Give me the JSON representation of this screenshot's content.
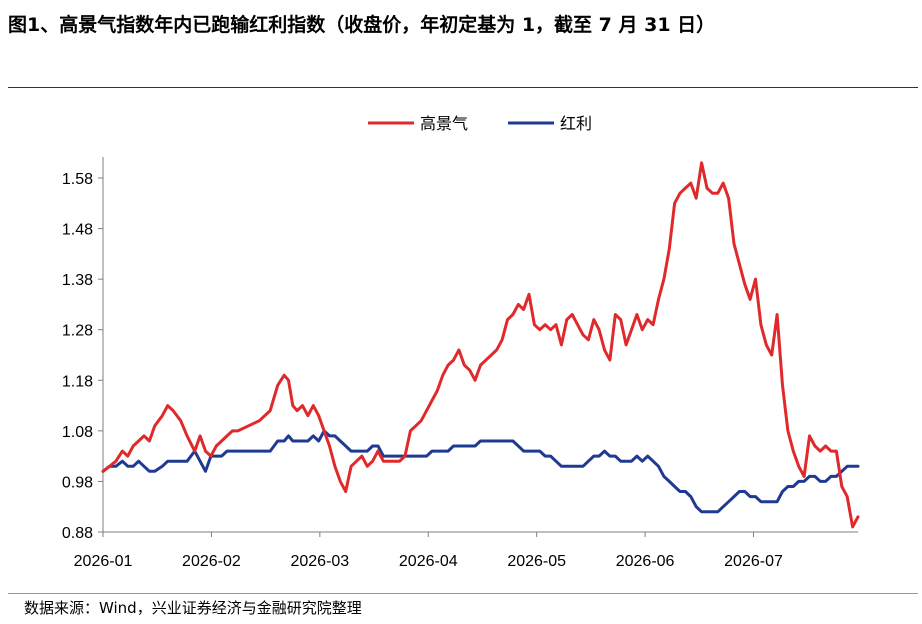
{
  "title": "图1、高景气指数年内已跑输红利指数（收盘价，年初定基为 1，截至 7 月 31 日）",
  "source": "数据来源：Wind，兴业证券经济与金融研究院整理",
  "chart_data": {
    "type": "line",
    "title": "图1、高景气指数年内已跑输红利指数（收盘价，年初定基为 1，截至 7 月 31 日）",
    "xlabel": "",
    "ylabel": "",
    "x_ticks": [
      "2026-01",
      "2026-02",
      "2026-03",
      "2026-04",
      "2026-05",
      "2026-06",
      "2026-07"
    ],
    "x_tick_values": [
      0,
      1,
      2,
      3,
      4,
      5,
      6
    ],
    "xlim": [
      0,
      6.72
    ],
    "ylim": [
      0.88,
      1.58
    ],
    "y_ticks": [
      "0.88",
      "0.98",
      "1.08",
      "1.18",
      "1.28",
      "1.38",
      "1.48",
      "1.58"
    ],
    "y_tick_values": [
      0.88,
      0.98,
      1.08,
      1.18,
      1.28,
      1.38,
      1.48,
      1.58
    ],
    "grid": false,
    "legend": "top-center",
    "series": [
      {
        "name": "高景气",
        "color": "#E0292B",
        "points": [
          [
            0,
            1
          ],
          [
            0.06,
            1.01
          ],
          [
            0.12,
            1.02
          ],
          [
            0.18,
            1.04
          ],
          [
            0.23,
            1.03
          ],
          [
            0.28,
            1.05
          ],
          [
            0.33,
            1.06
          ],
          [
            0.38,
            1.07
          ],
          [
            0.43,
            1.06
          ],
          [
            0.48,
            1.09
          ],
          [
            0.55,
            1.11
          ],
          [
            0.6,
            1.13
          ],
          [
            0.65,
            1.12
          ],
          [
            0.72,
            1.1
          ],
          [
            0.78,
            1.07
          ],
          [
            0.85,
            1.04
          ],
          [
            0.9,
            1.07
          ],
          [
            0.95,
            1.04
          ],
          [
            1.0,
            1.03
          ],
          [
            1.05,
            1.05
          ],
          [
            1.1,
            1.06
          ],
          [
            1.15,
            1.07
          ],
          [
            1.2,
            1.08
          ],
          [
            1.25,
            1.08
          ],
          [
            1.35,
            1.09
          ],
          [
            1.45,
            1.1
          ],
          [
            1.55,
            1.12
          ],
          [
            1.62,
            1.17
          ],
          [
            1.68,
            1.19
          ],
          [
            1.72,
            1.18
          ],
          [
            1.76,
            1.13
          ],
          [
            1.8,
            1.12
          ],
          [
            1.85,
            1.13
          ],
          [
            1.9,
            1.11
          ],
          [
            1.95,
            1.13
          ],
          [
            2.0,
            1.11
          ],
          [
            2.05,
            1.08
          ],
          [
            2.1,
            1.05
          ],
          [
            2.15,
            1.01
          ],
          [
            2.2,
            0.98
          ],
          [
            2.25,
            0.96
          ],
          [
            2.3,
            1.01
          ],
          [
            2.35,
            1.02
          ],
          [
            2.4,
            1.03
          ],
          [
            2.45,
            1.01
          ],
          [
            2.5,
            1.02
          ],
          [
            2.55,
            1.04
          ],
          [
            2.6,
            1.02
          ],
          [
            2.65,
            1.02
          ],
          [
            2.7,
            1.02
          ],
          [
            2.75,
            1.02
          ],
          [
            2.8,
            1.03
          ],
          [
            2.85,
            1.08
          ],
          [
            2.9,
            1.09
          ],
          [
            2.95,
            1.1
          ],
          [
            3.0,
            1.12
          ],
          [
            3.05,
            1.14
          ],
          [
            3.1,
            1.16
          ],
          [
            3.15,
            1.19
          ],
          [
            3.2,
            1.21
          ],
          [
            3.25,
            1.22
          ],
          [
            3.3,
            1.24
          ],
          [
            3.35,
            1.21
          ],
          [
            3.4,
            1.2
          ],
          [
            3.45,
            1.18
          ],
          [
            3.5,
            1.21
          ],
          [
            3.55,
            1.22
          ],
          [
            3.6,
            1.23
          ],
          [
            3.65,
            1.24
          ],
          [
            3.7,
            1.26
          ],
          [
            3.75,
            1.3
          ],
          [
            3.8,
            1.31
          ],
          [
            3.85,
            1.33
          ],
          [
            3.9,
            1.32
          ],
          [
            3.95,
            1.35
          ],
          [
            4.0,
            1.29
          ],
          [
            4.05,
            1.28
          ],
          [
            4.1,
            1.29
          ],
          [
            4.15,
            1.28
          ],
          [
            4.2,
            1.29
          ],
          [
            4.25,
            1.25
          ],
          [
            4.3,
            1.3
          ],
          [
            4.35,
            1.31
          ],
          [
            4.4,
            1.29
          ],
          [
            4.45,
            1.27
          ],
          [
            4.5,
            1.26
          ],
          [
            4.55,
            1.3
          ],
          [
            4.6,
            1.28
          ],
          [
            4.65,
            1.24
          ],
          [
            4.7,
            1.22
          ],
          [
            4.75,
            1.31
          ],
          [
            4.8,
            1.3
          ],
          [
            4.85,
            1.25
          ],
          [
            4.9,
            1.28
          ],
          [
            4.95,
            1.31
          ],
          [
            5.0,
            1.28
          ],
          [
            5.05,
            1.3
          ],
          [
            5.1,
            1.29
          ],
          [
            5.15,
            1.34
          ],
          [
            5.2,
            1.38
          ],
          [
            5.25,
            1.44
          ],
          [
            5.3,
            1.53
          ],
          [
            5.35,
            1.55
          ],
          [
            5.4,
            1.56
          ],
          [
            5.45,
            1.57
          ],
          [
            5.5,
            1.54
          ],
          [
            5.55,
            1.61
          ],
          [
            5.6,
            1.56
          ],
          [
            5.65,
            1.55
          ],
          [
            5.7,
            1.55
          ],
          [
            5.75,
            1.57
          ],
          [
            5.8,
            1.54
          ],
          [
            5.85,
            1.45
          ],
          [
            5.9,
            1.41
          ],
          [
            5.95,
            1.37
          ],
          [
            6.0,
            1.34
          ],
          [
            6.05,
            1.38
          ],
          [
            6.1,
            1.29
          ],
          [
            6.15,
            1.25
          ],
          [
            6.2,
            1.23
          ],
          [
            6.25,
            1.31
          ],
          [
            6.3,
            1.17
          ],
          [
            6.35,
            1.08
          ],
          [
            6.4,
            1.04
          ],
          [
            6.45,
            1.01
          ],
          [
            6.5,
            0.99
          ],
          [
            6.55,
            1.07
          ],
          [
            6.6,
            1.05
          ],
          [
            6.65,
            1.04
          ],
          [
            6.7,
            1.05
          ],
          [
            6.75,
            1.04
          ],
          [
            6.8,
            1.04
          ],
          [
            6.85,
            0.97
          ],
          [
            6.9,
            0.95
          ],
          [
            6.95,
            0.89
          ],
          [
            7.0,
            0.91
          ]
        ]
      },
      {
        "name": "红利",
        "color": "#1F3A93",
        "points": [
          [
            0,
            1
          ],
          [
            0.06,
            1.01
          ],
          [
            0.12,
            1.01
          ],
          [
            0.18,
            1.02
          ],
          [
            0.23,
            1.01
          ],
          [
            0.28,
            1.01
          ],
          [
            0.33,
            1.02
          ],
          [
            0.38,
            1.01
          ],
          [
            0.43,
            1.0
          ],
          [
            0.48,
            1.0
          ],
          [
            0.55,
            1.01
          ],
          [
            0.6,
            1.02
          ],
          [
            0.65,
            1.02
          ],
          [
            0.72,
            1.02
          ],
          [
            0.78,
            1.02
          ],
          [
            0.85,
            1.04
          ],
          [
            0.9,
            1.02
          ],
          [
            0.95,
            1.0
          ],
          [
            1.0,
            1.03
          ],
          [
            1.05,
            1.03
          ],
          [
            1.1,
            1.03
          ],
          [
            1.15,
            1.04
          ],
          [
            1.2,
            1.04
          ],
          [
            1.25,
            1.04
          ],
          [
            1.35,
            1.04
          ],
          [
            1.45,
            1.04
          ],
          [
            1.55,
            1.04
          ],
          [
            1.62,
            1.06
          ],
          [
            1.68,
            1.06
          ],
          [
            1.72,
            1.07
          ],
          [
            1.76,
            1.06
          ],
          [
            1.8,
            1.06
          ],
          [
            1.85,
            1.06
          ],
          [
            1.9,
            1.06
          ],
          [
            1.95,
            1.07
          ],
          [
            2.0,
            1.06
          ],
          [
            2.05,
            1.08
          ],
          [
            2.1,
            1.07
          ],
          [
            2.15,
            1.07
          ],
          [
            2.2,
            1.06
          ],
          [
            2.25,
            1.05
          ],
          [
            2.3,
            1.04
          ],
          [
            2.35,
            1.04
          ],
          [
            2.4,
            1.04
          ],
          [
            2.45,
            1.04
          ],
          [
            2.5,
            1.05
          ],
          [
            2.55,
            1.05
          ],
          [
            2.6,
            1.03
          ],
          [
            2.65,
            1.03
          ],
          [
            2.7,
            1.03
          ],
          [
            2.75,
            1.03
          ],
          [
            2.8,
            1.03
          ],
          [
            2.85,
            1.03
          ],
          [
            2.9,
            1.03
          ],
          [
            2.95,
            1.03
          ],
          [
            3.0,
            1.03
          ],
          [
            3.05,
            1.04
          ],
          [
            3.1,
            1.04
          ],
          [
            3.15,
            1.04
          ],
          [
            3.2,
            1.04
          ],
          [
            3.25,
            1.05
          ],
          [
            3.3,
            1.05
          ],
          [
            3.35,
            1.05
          ],
          [
            3.4,
            1.05
          ],
          [
            3.45,
            1.05
          ],
          [
            3.5,
            1.06
          ],
          [
            3.55,
            1.06
          ],
          [
            3.6,
            1.06
          ],
          [
            3.65,
            1.06
          ],
          [
            3.7,
            1.06
          ],
          [
            3.75,
            1.06
          ],
          [
            3.8,
            1.06
          ],
          [
            3.85,
            1.05
          ],
          [
            3.9,
            1.04
          ],
          [
            3.95,
            1.04
          ],
          [
            4.0,
            1.04
          ],
          [
            4.05,
            1.04
          ],
          [
            4.1,
            1.03
          ],
          [
            4.15,
            1.03
          ],
          [
            4.2,
            1.02
          ],
          [
            4.25,
            1.01
          ],
          [
            4.3,
            1.01
          ],
          [
            4.35,
            1.01
          ],
          [
            4.4,
            1.01
          ],
          [
            4.45,
            1.01
          ],
          [
            4.5,
            1.02
          ],
          [
            4.55,
            1.03
          ],
          [
            4.6,
            1.03
          ],
          [
            4.65,
            1.04
          ],
          [
            4.7,
            1.03
          ],
          [
            4.75,
            1.03
          ],
          [
            4.8,
            1.02
          ],
          [
            4.85,
            1.02
          ],
          [
            4.9,
            1.02
          ],
          [
            4.95,
            1.03
          ],
          [
            5.0,
            1.02
          ],
          [
            5.05,
            1.03
          ],
          [
            5.1,
            1.02
          ],
          [
            5.15,
            1.01
          ],
          [
            5.2,
            0.99
          ],
          [
            5.25,
            0.98
          ],
          [
            5.3,
            0.97
          ],
          [
            5.35,
            0.96
          ],
          [
            5.4,
            0.96
          ],
          [
            5.45,
            0.95
          ],
          [
            5.5,
            0.93
          ],
          [
            5.55,
            0.92
          ],
          [
            5.6,
            0.92
          ],
          [
            5.65,
            0.92
          ],
          [
            5.7,
            0.92
          ],
          [
            5.75,
            0.93
          ],
          [
            5.8,
            0.94
          ],
          [
            5.85,
            0.95
          ],
          [
            5.9,
            0.96
          ],
          [
            5.95,
            0.96
          ],
          [
            6.0,
            0.95
          ],
          [
            6.05,
            0.95
          ],
          [
            6.1,
            0.94
          ],
          [
            6.15,
            0.94
          ],
          [
            6.2,
            0.94
          ],
          [
            6.25,
            0.94
          ],
          [
            6.3,
            0.96
          ],
          [
            6.35,
            0.97
          ],
          [
            6.4,
            0.97
          ],
          [
            6.45,
            0.98
          ],
          [
            6.5,
            0.98
          ],
          [
            6.55,
            0.99
          ],
          [
            6.6,
            0.99
          ],
          [
            6.65,
            0.98
          ],
          [
            6.7,
            0.98
          ],
          [
            6.75,
            0.99
          ],
          [
            6.8,
            0.99
          ],
          [
            6.85,
            1.0
          ],
          [
            6.9,
            1.01
          ],
          [
            6.95,
            1.01
          ],
          [
            7.0,
            1.01
          ]
        ]
      }
    ]
  }
}
